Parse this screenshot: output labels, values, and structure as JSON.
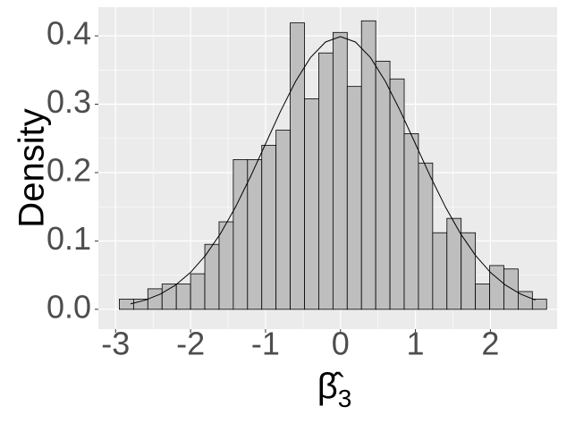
{
  "chart_data": {
    "type": "histogram",
    "y_label": "Density",
    "x_label": {
      "symbol": "β̂",
      "subscript": "3"
    },
    "bins": [
      -2.95,
      -2.76,
      -2.57,
      -2.38,
      -2.19,
      -2.0,
      -1.81,
      -1.62,
      -1.43,
      -1.24,
      -1.05,
      -0.86,
      -0.67,
      -0.48,
      -0.29,
      -0.1,
      0.09,
      0.28,
      0.47,
      0.66,
      0.85,
      1.04,
      1.23,
      1.42,
      1.61,
      1.8,
      1.99,
      2.18,
      2.37,
      2.56,
      2.75
    ],
    "values": [
      0.015,
      0.015,
      0.03,
      0.037,
      0.037,
      0.052,
      0.095,
      0.128,
      0.219,
      0.219,
      0.24,
      0.262,
      0.419,
      0.308,
      0.375,
      0.405,
      0.326,
      0.422,
      0.363,
      0.337,
      0.257,
      0.214,
      0.112,
      0.133,
      0.112,
      0.037,
      0.064,
      0.059,
      0.026,
      0.015
    ],
    "color": "#bebebe",
    "edge_color": "#000000",
    "density_curve": {
      "type": "line",
      "color": "#000000",
      "x": [
        -2.8,
        -2.6,
        -2.4,
        -2.2,
        -2.0,
        -1.8,
        -1.6,
        -1.4,
        -1.2,
        -1.0,
        -0.8,
        -0.6,
        -0.4,
        -0.2,
        0,
        0.2,
        0.4,
        0.6,
        0.8,
        1.0,
        1.2,
        1.4,
        1.6,
        1.8,
        2.0,
        2.2,
        2.4,
        2.6
      ],
      "values": [
        0.0079,
        0.0136,
        0.0224,
        0.0355,
        0.054,
        0.079,
        0.1109,
        0.1497,
        0.1942,
        0.242,
        0.2897,
        0.3332,
        0.3683,
        0.391,
        0.3989,
        0.391,
        0.3683,
        0.3332,
        0.2897,
        0.242,
        0.1942,
        0.1497,
        0.1109,
        0.079,
        0.054,
        0.0355,
        0.0224,
        0.0136
      ]
    },
    "xlim": [
      -3.23,
      2.89
    ],
    "ylim": [
      -0.029,
      0.442
    ],
    "xticks": [
      -3,
      -2,
      -1,
      0,
      1,
      2
    ],
    "yticks": [
      {
        "value": 0,
        "label": "0.0"
      },
      {
        "value": 0.1,
        "label": "0.1"
      },
      {
        "value": 0.2,
        "label": "0.2"
      },
      {
        "value": 0.3,
        "label": "0.3"
      },
      {
        "value": 0.4,
        "label": "0.4"
      }
    ],
    "grid": true
  }
}
